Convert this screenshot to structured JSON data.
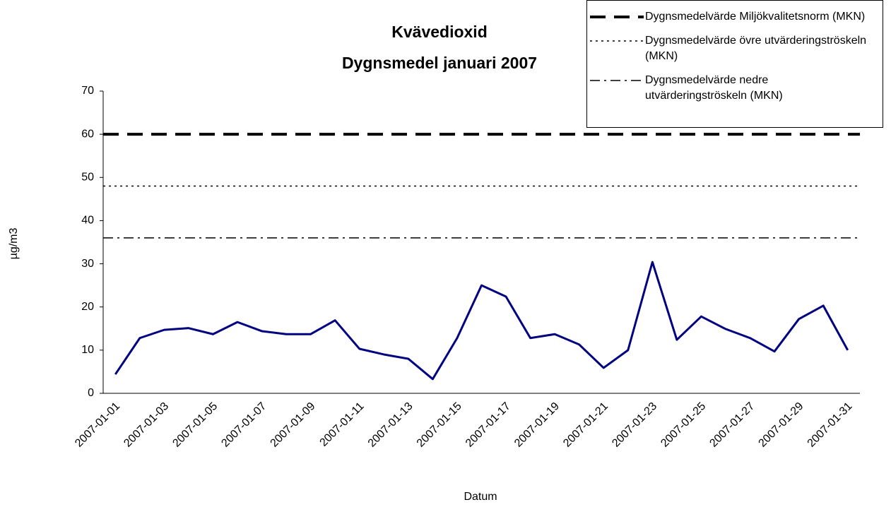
{
  "chart_data": {
    "type": "line",
    "title": "Kvävedioxid",
    "subtitle": "Dygnsmedel januari 2007",
    "x_label": "Datum",
    "y_label": "µg/m3",
    "categories": [
      "2007-01-01",
      null,
      "2007-01-03",
      null,
      "2007-01-05",
      null,
      "2007-01-07",
      null,
      "2007-01-09",
      null,
      "2007-01-11",
      null,
      "2007-01-13",
      null,
      "2007-01-15",
      null,
      "2007-01-17",
      null,
      "2007-01-19",
      null,
      "2007-01-21",
      null,
      "2007-01-23",
      null,
      "2007-01-25",
      null,
      "2007-01-27",
      null,
      "2007-01-29",
      null,
      "2007-01-31"
    ],
    "series": [
      {
        "color": "#000080",
        "values": [
          4.4,
          12.8,
          14.7,
          15.1,
          13.7,
          16.5,
          14.4,
          13.7,
          13.7,
          16.9,
          10.3,
          9.0,
          8.0,
          3.3,
          12.8,
          25.0,
          22.4,
          12.8,
          13.7,
          11.3,
          5.9,
          10.0,
          30.4,
          12.4,
          17.8,
          14.9,
          12.8,
          9.7,
          17.2,
          20.3,
          10.0
        ]
      }
    ],
    "reference_lines": [
      {
        "name": "Dygnsmedelvärde Miljökvalitetsnorm (MKN)",
        "value": 60,
        "style": "dashed",
        "color": "#000000"
      },
      {
        "name": "Dygnsmedelvärde övre utvärderingströskeln (MKN)",
        "value": 48,
        "style": "dotted",
        "color": "#000000"
      },
      {
        "name": "Dygnsmedelvärde nedre utvärderingströskeln (MKN)",
        "value": 36,
        "style": "dashdot",
        "color": "#000000"
      }
    ],
    "ylim": [
      0,
      70
    ],
    "yticks": [
      0,
      10,
      20,
      30,
      40,
      50,
      60,
      70
    ],
    "grid": false,
    "legend": "top-right"
  }
}
